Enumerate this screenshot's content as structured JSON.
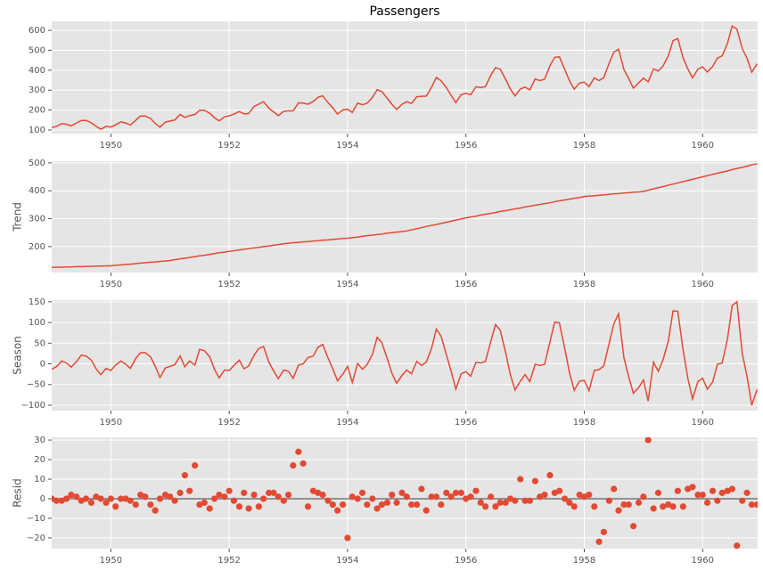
{
  "chart_data": {
    "title": "Passengers",
    "color": "#e24a33",
    "grid": true,
    "xlim": [
      1949,
      1960.93
    ],
    "xticks": [
      1950,
      1952,
      1954,
      1956,
      1958,
      1960
    ],
    "x": [
      1949,
      1949.08,
      1949.17,
      1949.25,
      1949.33,
      1949.42,
      1949.5,
      1949.58,
      1949.67,
      1949.75,
      1949.83,
      1949.92,
      1950,
      1950.08,
      1950.17,
      1950.25,
      1950.33,
      1950.42,
      1950.5,
      1950.58,
      1950.67,
      1950.75,
      1950.83,
      1950.92,
      1951,
      1951.08,
      1951.17,
      1951.25,
      1951.33,
      1951.42,
      1951.5,
      1951.58,
      1951.67,
      1951.75,
      1951.83,
      1951.92,
      1952,
      1952.08,
      1952.17,
      1952.25,
      1952.33,
      1952.42,
      1952.5,
      1952.58,
      1952.67,
      1952.75,
      1952.83,
      1952.92,
      1953,
      1953.08,
      1953.17,
      1953.25,
      1953.33,
      1953.42,
      1953.5,
      1953.58,
      1953.67,
      1953.75,
      1953.83,
      1953.92,
      1954,
      1954.08,
      1954.17,
      1954.25,
      1954.33,
      1954.42,
      1954.5,
      1954.58,
      1954.67,
      1954.75,
      1954.83,
      1954.92,
      1955,
      1955.08,
      1955.17,
      1955.25,
      1955.33,
      1955.42,
      1955.5,
      1955.58,
      1955.67,
      1955.75,
      1955.83,
      1955.92,
      1956,
      1956.08,
      1956.17,
      1956.25,
      1956.33,
      1956.42,
      1956.5,
      1956.58,
      1956.67,
      1956.75,
      1956.83,
      1956.92,
      1957,
      1957.08,
      1957.17,
      1957.25,
      1957.33,
      1957.42,
      1957.5,
      1957.58,
      1957.67,
      1957.75,
      1957.83,
      1957.92,
      1958,
      1958.08,
      1958.17,
      1958.25,
      1958.33,
      1958.42,
      1958.5,
      1958.58,
      1958.67,
      1958.75,
      1958.83,
      1958.92,
      1959,
      1959.08,
      1959.17,
      1959.25,
      1959.33,
      1959.42,
      1959.5,
      1959.58,
      1959.67,
      1959.75,
      1959.83,
      1959.92,
      1960,
      1960.08,
      1960.17,
      1960.25,
      1960.33,
      1960.42,
      1960.5,
      1960.58,
      1960.67,
      1960.75,
      1960.83,
      1960.92
    ],
    "panels": [
      {
        "type": "line",
        "ylim": [
          82,
          645
        ],
        "yticks": [
          100,
          200,
          300,
          400,
          500,
          600
        ],
        "values": [
          112,
          118,
          132,
          129,
          121,
          135,
          148,
          148,
          136,
          119,
          104,
          118,
          115,
          126,
          141,
          135,
          125,
          149,
          170,
          170,
          158,
          133,
          114,
          140,
          145,
          150,
          178,
          163,
          172,
          178,
          199,
          199,
          184,
          162,
          146,
          166,
          171,
          180,
          193,
          181,
          183,
          218,
          230,
          242,
          209,
          191,
          172,
          194,
          196,
          196,
          236,
          235,
          229,
          243,
          264,
          272,
          237,
          211,
          180,
          201,
          204,
          188,
          235,
          227,
          234,
          264,
          302,
          293,
          259,
          229,
          203,
          229,
          242,
          233,
          267,
          269,
          270,
          315,
          364,
          347,
          312,
          274,
          237,
          278,
          284,
          277,
          317,
          313,
          318,
          374,
          413,
          405,
          355,
          306,
          271,
          306,
          315,
          301,
          356,
          348,
          355,
          422,
          465,
          467,
          404,
          347,
          305,
          336,
          340,
          318,
          362,
          348,
          363,
          435,
          491,
          505,
          404,
          359,
          310,
          337,
          360,
          342,
          406,
          396,
          420,
          472,
          548,
          559,
          463,
          407,
          362,
          405,
          417,
          391,
          419,
          461,
          472,
          535,
          622,
          606,
          508,
          461,
          390,
          432
        ]
      },
      {
        "type": "line",
        "ylabel": "Trend",
        "ylim": [
          107,
          506
        ],
        "yticks": [
          200,
          300,
          400,
          500
        ],
        "values": [
          125,
          126,
          126,
          127,
          127,
          128,
          128,
          129,
          129,
          130,
          130,
          131,
          131,
          133,
          134,
          136,
          137,
          139,
          141,
          142,
          144,
          145,
          147,
          148,
          150,
          153,
          156,
          158,
          161,
          164,
          167,
          169,
          172,
          175,
          178,
          180,
          183,
          185,
          188,
          190,
          193,
          195,
          197,
          200,
          202,
          205,
          207,
          210,
          212,
          214,
          215,
          217,
          218,
          220,
          221,
          223,
          224,
          226,
          227,
          229,
          230,
          232,
          234,
          237,
          239,
          241,
          243,
          245,
          248,
          250,
          252,
          254,
          256,
          260,
          264,
          268,
          272,
          276,
          279,
          283,
          287,
          291,
          295,
          299,
          303,
          306,
          309,
          313,
          316,
          319,
          322,
          326,
          329,
          332,
          335,
          338,
          342,
          345,
          348,
          351,
          354,
          357,
          361,
          364,
          367,
          370,
          373,
          376,
          379,
          381,
          382,
          384,
          385,
          387,
          389,
          390,
          392,
          393,
          395,
          396,
          398,
          402,
          407,
          411,
          415,
          420,
          424,
          428,
          433,
          437,
          441,
          446,
          450,
          454,
          459,
          463,
          467,
          471,
          476,
          480,
          484,
          488,
          493,
          497
        ]
      },
      {
        "type": "line",
        "ylabel": "Season",
        "ylim": [
          -113,
          154
        ],
        "yticks": [
          {
            "value": -100,
            "label": "−100"
          },
          {
            "value": -50,
            "label": "−50"
          },
          0,
          50,
          100,
          150
        ],
        "values": [
          -13,
          -7,
          7,
          2,
          -8,
          6,
          21,
          19,
          9,
          -12,
          -26,
          -11,
          -16,
          -3,
          7,
          -1,
          -11,
          13,
          27,
          27,
          17,
          -6,
          -33,
          -10,
          -6,
          -2,
          19,
          -7,
          7,
          -3,
          35,
          32,
          17,
          -13,
          -34,
          -15,
          -16,
          -4,
          9,
          -12,
          -5,
          21,
          37,
          42,
          4,
          -17,
          -36,
          -15,
          -18,
          -35,
          -3,
          0,
          15,
          19,
          40,
          47,
          14,
          -12,
          -41,
          -25,
          -6,
          -45,
          1,
          -13,
          -2,
          23,
          64,
          51,
          13,
          -23,
          -47,
          -28,
          -15,
          -24,
          6,
          -4,
          4,
          38,
          84,
          67,
          22,
          -18,
          -61,
          -24,
          -19,
          -30,
          4,
          2,
          6,
          54,
          95,
          81,
          28,
          -26,
          -63,
          -42,
          -26,
          -43,
          -1,
          -4,
          -1,
          53,
          101,
          99,
          37,
          -21,
          -64,
          -42,
          -40,
          -65,
          -16,
          -14,
          -5,
          49,
          97,
          121,
          15,
          -31,
          -71,
          -57,
          -39,
          -90,
          4,
          -18,
          9,
          55,
          128,
          127,
          34,
          -35,
          -85,
          -43,
          -35,
          -61,
          -44,
          -1,
          2,
          60,
          141,
          150,
          25,
          -30,
          -100,
          -62
        ]
      },
      {
        "type": "scatter",
        "ylabel": "Resid",
        "ylim": [
          -25.5,
          31.4
        ],
        "yticks": [
          {
            "value": -20,
            "label": "−20"
          },
          {
            "value": -10,
            "label": "−10"
          },
          0,
          10,
          20,
          30
        ],
        "values": [
          0,
          -1,
          -1,
          0,
          2,
          1,
          -1,
          0,
          -2,
          1,
          0,
          -2,
          0,
          -4,
          0,
          0,
          -1,
          -3,
          2,
          1,
          -3,
          -6,
          0,
          2,
          1,
          -1,
          3,
          12,
          4,
          17,
          -3,
          -2,
          -5,
          0,
          2,
          1,
          4,
          -1,
          -4,
          3,
          -5,
          2,
          -4,
          0,
          3,
          3,
          1,
          -1,
          2,
          17,
          24,
          18,
          -4,
          4,
          3,
          2,
          -1,
          -3,
          -6,
          -3,
          -20,
          1,
          0,
          3,
          -3,
          0,
          -5,
          -3,
          -2,
          2,
          -2,
          3,
          1,
          -3,
          -3,
          5,
          -6,
          1,
          1,
          -3,
          3,
          1,
          3,
          3,
          0,
          1,
          4,
          -2,
          -4,
          1,
          -4,
          -2,
          -2,
          0,
          -1,
          10,
          -1,
          -1,
          9,
          1,
          2,
          12,
          3,
          4,
          0,
          -2,
          -4,
          2,
          1,
          2,
          -4,
          -22,
          -17,
          -1,
          5,
          -6,
          -3,
          -3,
          -14,
          -2,
          1,
          30,
          -5,
          3,
          -4,
          -3,
          -4,
          4,
          -4,
          5,
          6,
          2,
          2,
          -2,
          4,
          -1,
          3,
          4,
          5,
          -24,
          -1,
          3,
          -3,
          -3
        ]
      }
    ]
  }
}
